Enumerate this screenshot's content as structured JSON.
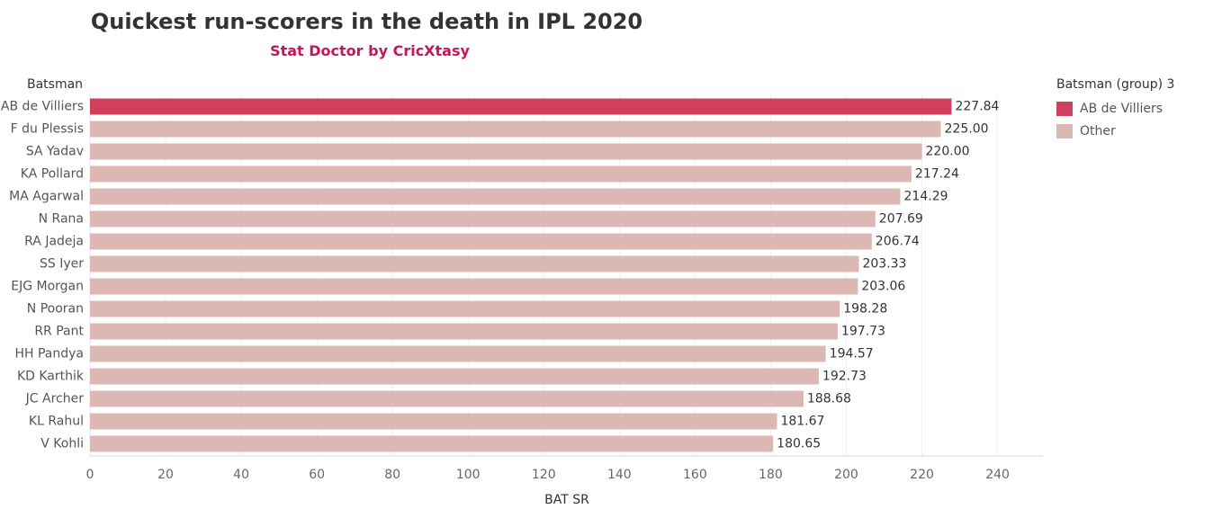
{
  "chart_data": {
    "type": "bar",
    "orientation": "horizontal",
    "title": "Quickest run-scorers in the death in IPL 2020",
    "subtitle": "Stat Doctor by CricXtasy",
    "ylabel": "Batsman",
    "xlabel": "BAT SR",
    "xlim": [
      0,
      252
    ],
    "xticks": [
      0,
      20,
      40,
      60,
      80,
      100,
      120,
      140,
      160,
      180,
      200,
      220,
      240
    ],
    "categories": [
      "AB de Villiers",
      "F du Plessis",
      "SA Yadav",
      "KA Pollard",
      "MA Agarwal",
      "N Rana",
      "RA Jadeja",
      "SS Iyer",
      "EJG Morgan",
      "N Pooran",
      "RR Pant",
      "HH Pandya",
      "KD Karthik",
      "JC Archer",
      "KL Rahul",
      "V Kohli"
    ],
    "values": [
      227.84,
      225.0,
      220.0,
      217.24,
      214.29,
      207.69,
      206.74,
      203.33,
      203.06,
      198.28,
      197.73,
      194.57,
      192.73,
      188.68,
      181.67,
      180.65
    ],
    "value_labels": [
      "227.84",
      "225.00",
      "220.00",
      "217.24",
      "214.29",
      "207.69",
      "206.74",
      "203.33",
      "203.06",
      "198.28",
      "197.73",
      "194.57",
      "192.73",
      "188.68",
      "181.67",
      "180.65"
    ],
    "groups": [
      "AB de Villiers",
      "Other",
      "Other",
      "Other",
      "Other",
      "Other",
      "Other",
      "Other",
      "Other",
      "Other",
      "Other",
      "Other",
      "Other",
      "Other",
      "Other",
      "Other"
    ],
    "legend": {
      "title": "Batsman (group) 3",
      "position": "right",
      "items": [
        {
          "label": "AB de Villiers",
          "color": "#d03f5c"
        },
        {
          "label": "Other",
          "color": "#dbb8b4"
        }
      ]
    },
    "grid": true
  },
  "colors": {
    "subtitle": "#c2185b"
  }
}
